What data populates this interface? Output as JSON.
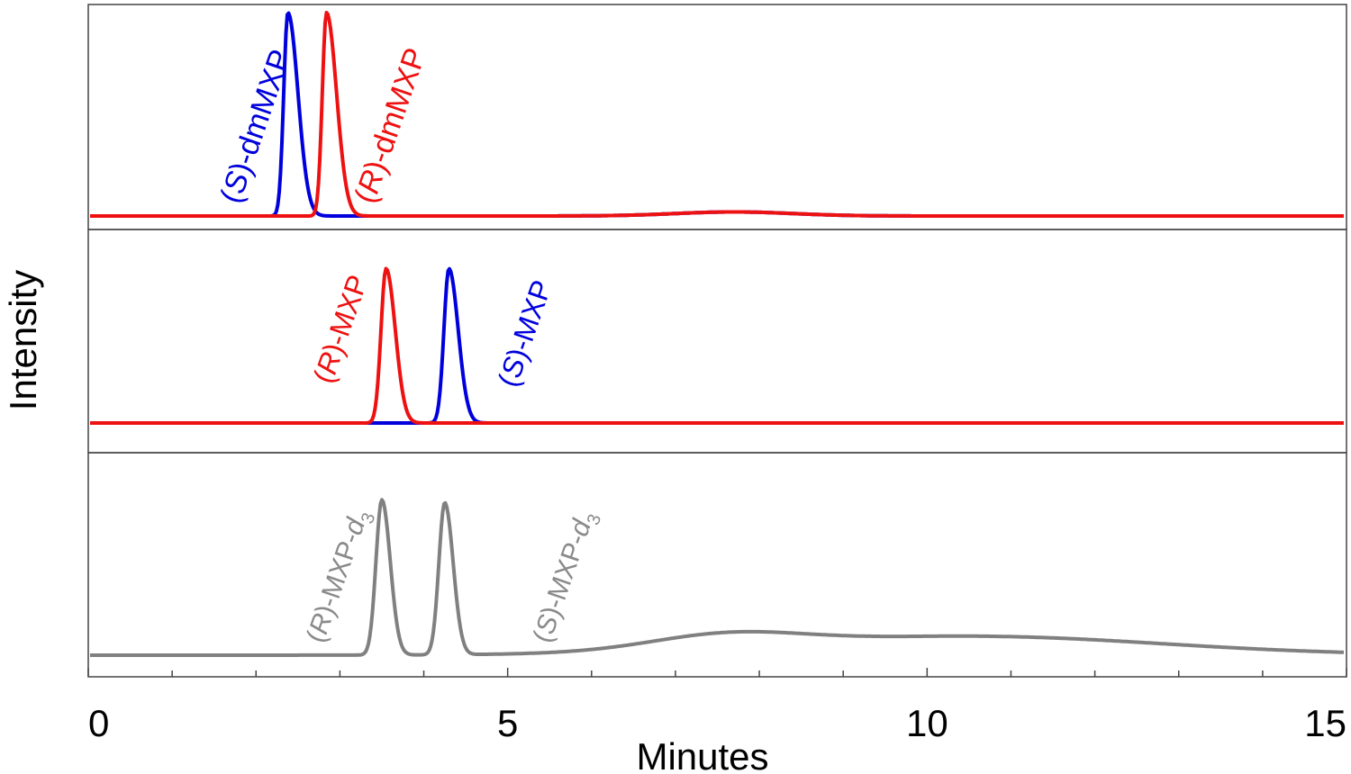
{
  "chart_data": {
    "type": "line",
    "xlabel": "Minutes",
    "ylabel": "Intensity",
    "xlim": [
      0,
      15
    ],
    "x_ticks_major": [
      0,
      5,
      10,
      15
    ],
    "x_ticks_minor_step": 1,
    "grid": false,
    "panels": [
      {
        "id": "dmmxp",
        "series": [
          {
            "name": "(S)-dmMXP",
            "color": "#0000dd",
            "peaks": [
              {
                "t": 2.38,
                "height": 1.0,
                "sigma_left": 0.05,
                "sigma_right": 0.12
              }
            ],
            "broad": [
              {
                "t": 7.7,
                "height": 0.02,
                "sigma": 0.7
              }
            ]
          },
          {
            "name": "(R)-dmMXP",
            "color": "#ee1111",
            "peaks": [
              {
                "t": 2.84,
                "height": 1.0,
                "sigma_left": 0.05,
                "sigma_right": 0.12
              }
            ],
            "broad": [
              {
                "t": 7.7,
                "height": 0.02,
                "sigma": 0.7
              }
            ]
          }
        ],
        "labels": [
          {
            "prefix": "(",
            "italic": "S",
            "rest": ")-dmMXP",
            "color": "#0000dd",
            "x": 1.8
          },
          {
            "prefix": "(",
            "italic": "R",
            "rest": ")-dmMXP",
            "color": "#ee1111",
            "x": 3.4
          }
        ]
      },
      {
        "id": "mxp",
        "series": [
          {
            "name": "(S)-MXP",
            "color": "#0000dd",
            "peaks": [
              {
                "t": 4.3,
                "height": 0.98,
                "sigma_left": 0.06,
                "sigma_right": 0.11
              }
            ],
            "broad": []
          },
          {
            "name": "(R)-MXP",
            "color": "#ee1111",
            "peaks": [
              {
                "t": 3.55,
                "height": 0.98,
                "sigma_left": 0.06,
                "sigma_right": 0.11
              }
            ],
            "broad": []
          }
        ],
        "labels": [
          {
            "prefix": "(",
            "italic": "R",
            "rest": ")-MXP",
            "color": "#ee1111",
            "x": 2.9
          },
          {
            "prefix": "(",
            "italic": "S",
            "rest": ")-MXP",
            "color": "#0000dd",
            "x": 5.1
          }
        ]
      },
      {
        "id": "mxp-d3",
        "series": [
          {
            "name": "MXP-d3",
            "color": "#808080",
            "peaks": [
              {
                "t": 3.5,
                "height": 0.98,
                "sigma_left": 0.07,
                "sigma_right": 0.1
              },
              {
                "t": 4.25,
                "height": 0.96,
                "sigma_left": 0.07,
                "sigma_right": 0.1
              }
            ],
            "broad": [
              {
                "t": 7.6,
                "height": 0.09,
                "sigma": 0.9
              },
              {
                "t": 10.5,
                "height": 0.12,
                "sigma": 2.3
              }
            ]
          }
        ],
        "labels": [
          {
            "prefix": "(",
            "italic": "R",
            "rest": ")-MXP-",
            "italic2": "d",
            "sub": "3",
            "color": "#8a8a8a",
            "x": 2.8
          },
          {
            "prefix": "(",
            "italic": "S",
            "rest": ")-MXP-",
            "italic2": "d",
            "sub": "3",
            "color": "#8a8a8a",
            "x": 5.5
          }
        ]
      }
    ]
  }
}
